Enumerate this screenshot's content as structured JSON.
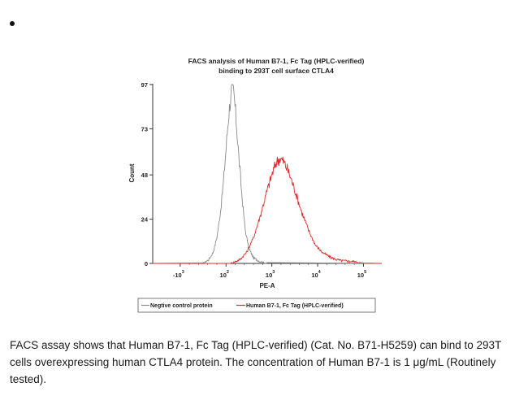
{
  "bullet_symbol": "•",
  "chart_data": {
    "type": "line",
    "title": "FACS analysis of Human B7-1, Fc Tag (HPLC-verified) binding to 293T cell surface CTLA4",
    "title_lines": [
      "FACS analysis of Human B7-1, Fc Tag (HPLC-verified)",
      "binding to 293T cell surface CTLA4"
    ],
    "xlabel": "PE-A",
    "ylabel": "Count",
    "x_scale": "biexponential",
    "x_ticks": [
      {
        "base": "-10",
        "exp": "3"
      },
      {
        "base": "10",
        "exp": "2"
      },
      {
        "base": "10",
        "exp": "3"
      },
      {
        "base": "10",
        "exp": "4"
      },
      {
        "base": "10",
        "exp": "5"
      }
    ],
    "y_ticks": [
      0,
      24,
      48,
      73,
      97
    ],
    "ylim": [
      0,
      97
    ],
    "grid": false,
    "legend_position": "bottom",
    "series": [
      {
        "name": "Negtive control protein",
        "color": "#8a8a8a",
        "points": [
          [
            1.5,
            0
          ],
          [
            1.62,
            2
          ],
          [
            1.72,
            6
          ],
          [
            1.8,
            14
          ],
          [
            1.88,
            28
          ],
          [
            1.95,
            46
          ],
          [
            2.0,
            62
          ],
          [
            2.05,
            78
          ],
          [
            2.1,
            90
          ],
          [
            2.14,
            96
          ],
          [
            2.18,
            90
          ],
          [
            2.22,
            78
          ],
          [
            2.28,
            58
          ],
          [
            2.35,
            36
          ],
          [
            2.42,
            18
          ],
          [
            2.5,
            8
          ],
          [
            2.6,
            3
          ],
          [
            2.75,
            1
          ],
          [
            2.9,
            0
          ]
        ]
      },
      {
        "name": "Human B7-1, Fc Tag (HPLC-verified)",
        "color": "#e3282a",
        "points": [
          [
            2.1,
            0
          ],
          [
            2.3,
            2
          ],
          [
            2.45,
            6
          ],
          [
            2.6,
            14
          ],
          [
            2.75,
            26
          ],
          [
            2.88,
            38
          ],
          [
            3.0,
            48
          ],
          [
            3.1,
            55
          ],
          [
            3.18,
            57
          ],
          [
            3.26,
            55
          ],
          [
            3.36,
            50
          ],
          [
            3.5,
            40
          ],
          [
            3.65,
            28
          ],
          [
            3.8,
            18
          ],
          [
            3.95,
            10
          ],
          [
            4.1,
            6
          ],
          [
            4.3,
            3
          ],
          [
            4.5,
            1.5
          ],
          [
            4.8,
            1
          ],
          [
            5.0,
            0
          ]
        ]
      }
    ]
  },
  "caption": "FACS assay shows that Human B7-1, Fc Tag (HPLC-verified) (Cat. No. B71-H5259) can bind to 293T cells overexpressing human CTLA4 protein. The concentration of Human B7-1 is 1 μg/mL (Routinely tested)."
}
